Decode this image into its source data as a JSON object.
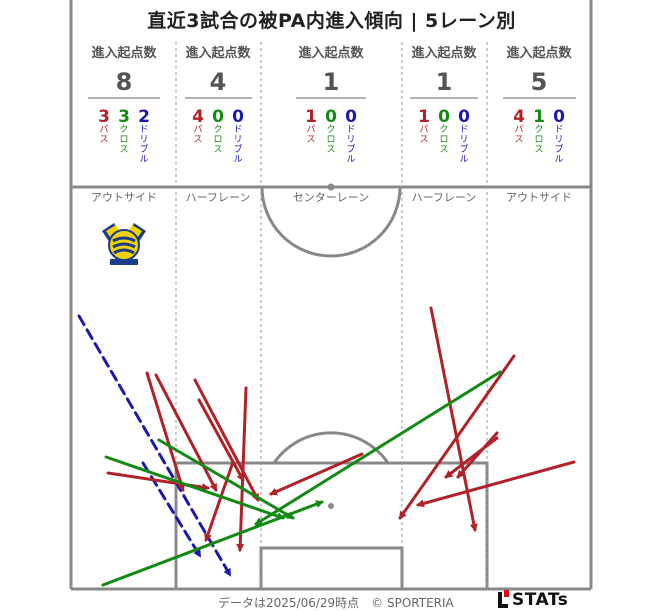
{
  "title": "直近3試合の被PA内進入傾向 | 5レーン別",
  "footer": "データは2025/06/29時点　© SPORTERIA",
  "brand": "STATs",
  "colors": {
    "pass": "#b0222a",
    "cross": "#138a13",
    "dribble": "#1a1aaa",
    "line": "#888888",
    "text_gray": "#555555"
  },
  "chart_data": {
    "type": "flow_map",
    "title": "直近3試合の被PA内進入傾向 | 5レーン別",
    "header_label": "進入起点数",
    "categories_labels": {
      "pass": "パス",
      "cross": "クロス",
      "dribble": "ドリブル"
    },
    "lanes": [
      {
        "name": "アウトサイド",
        "total": 8,
        "pass": 3,
        "cross": 3,
        "dribble": 2
      },
      {
        "name": "ハーフレーン",
        "total": 4,
        "pass": 4,
        "cross": 0,
        "dribble": 0
      },
      {
        "name": "センターレーン",
        "total": 1,
        "pass": 1,
        "cross": 0,
        "dribble": 0
      },
      {
        "name": "ハーフレーン",
        "total": 1,
        "pass": 1,
        "cross": 0,
        "dribble": 0
      },
      {
        "name": "アウトサイド",
        "total": 5,
        "pass": 4,
        "cross": 1,
        "dribble": 0
      }
    ],
    "arrows": [
      {
        "type": "dribble",
        "from": [
          79,
          316
        ],
        "to": [
          230,
          575
        ]
      },
      {
        "type": "dribble",
        "from": [
          143,
          463
        ],
        "to": [
          200,
          556
        ]
      },
      {
        "type": "pass",
        "from": [
          147,
          373
        ],
        "to": [
          183,
          490
        ]
      },
      {
        "type": "pass",
        "from": [
          156,
          375
        ],
        "to": [
          216,
          490
        ]
      },
      {
        "type": "pass",
        "from": [
          195,
          380
        ],
        "to": [
          258,
          500
        ]
      },
      {
        "type": "pass",
        "from": [
          199,
          400
        ],
        "to": [
          243,
          480
        ]
      },
      {
        "type": "pass",
        "from": [
          233,
          462
        ],
        "to": [
          206,
          540
        ]
      },
      {
        "type": "pass",
        "from": [
          246,
          388
        ],
        "to": [
          240,
          550
        ]
      },
      {
        "type": "pass",
        "from": [
          108,
          473
        ],
        "to": [
          208,
          488
        ]
      },
      {
        "type": "pass",
        "from": [
          362,
          454
        ],
        "to": [
          271,
          494
        ]
      },
      {
        "type": "pass",
        "from": [
          431,
          308
        ],
        "to": [
          475,
          530
        ]
      },
      {
        "type": "pass",
        "from": [
          514,
          356
        ],
        "to": [
          400,
          518
        ]
      },
      {
        "type": "pass",
        "from": [
          497,
          433
        ],
        "to": [
          458,
          477
        ]
      },
      {
        "type": "pass",
        "from": [
          497,
          438
        ],
        "to": [
          446,
          477
        ]
      },
      {
        "type": "pass",
        "from": [
          574,
          462
        ],
        "to": [
          418,
          505
        ]
      },
      {
        "type": "cross",
        "from": [
          159,
          440
        ],
        "to": [
          293,
          518
        ]
      },
      {
        "type": "cross",
        "from": [
          106,
          457
        ],
        "to": [
          283,
          518
        ]
      },
      {
        "type": "cross",
        "from": [
          103,
          585
        ],
        "to": [
          322,
          502
        ]
      },
      {
        "type": "cross",
        "from": [
          500,
          372
        ],
        "to": [
          256,
          524
        ]
      }
    ]
  }
}
